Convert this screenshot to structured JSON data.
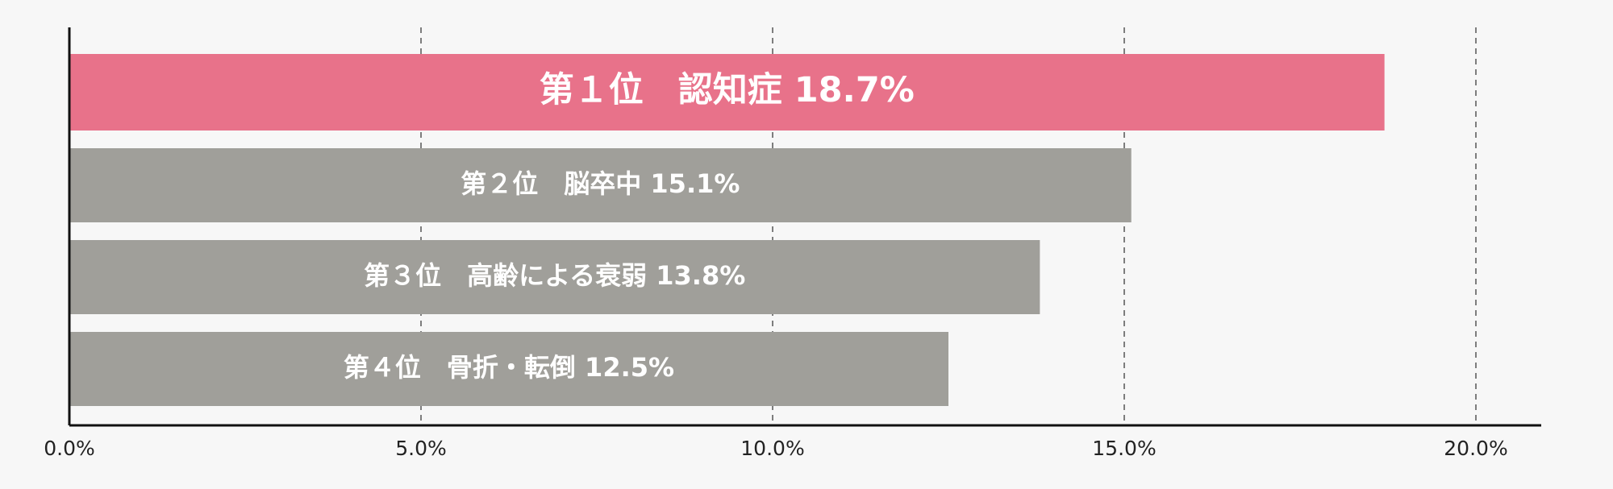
{
  "chart_data": {
    "type": "bar",
    "orientation": "horizontal",
    "categories": [
      "第１位　認知症",
      "第２位　脳卒中",
      "第３位　高齢による衰弱",
      "第４位　骨折・転倒"
    ],
    "values": [
      18.7,
      15.1,
      13.8,
      12.5
    ],
    "bar_labels": [
      "第１位　認知症 18.7%",
      "第２位　脳卒中 15.1%",
      "第３位　高齢による衰弱 13.8%",
      "第４位　骨折・転倒 12.5%"
    ],
    "xlim": [
      0,
      21
    ],
    "x_ticks": [
      0,
      5,
      10,
      15,
      20
    ],
    "x_tick_labels": [
      "0.0%",
      "5.0%",
      "10.0%",
      "15.0%",
      "20.0%"
    ],
    "grid": "vertical dashed",
    "colors": {
      "highlight": "#e8728a",
      "default": "#a09f9a",
      "background": "#f7f7f7",
      "axis": "#111111",
      "grid": "#555555"
    }
  }
}
